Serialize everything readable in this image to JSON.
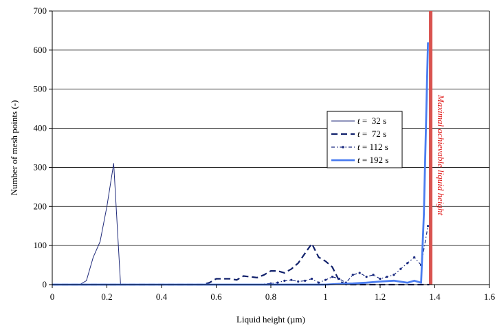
{
  "chart_data": {
    "type": "line",
    "title": "",
    "xlabel": "Liquid height (µm)",
    "ylabel": "Number of mesh points (-)",
    "xlim": [
      0,
      1.6
    ],
    "ylim": [
      0,
      700
    ],
    "xticks": [
      "0",
      "0.2",
      "0.4",
      "0.6",
      "0.8",
      "1",
      "1.2",
      "1.4",
      "1.6"
    ],
    "yticks": [
      "0",
      "100",
      "200",
      "300",
      "400",
      "500",
      "600",
      "700"
    ],
    "grid": "horizontal",
    "legend_position": "right-center",
    "annotation": {
      "text": "Maximal achievable liquid height",
      "x": 1.385,
      "color": "#d9534f"
    },
    "series": [
      {
        "name_prefix": "t",
        "name_suffix": " =  32 s",
        "color": "#1f2a7a",
        "style": "thin-solid",
        "x": [
          0,
          0.025,
          0.05,
          0.075,
          0.1,
          0.125,
          0.15,
          0.175,
          0.2,
          0.225,
          0.25,
          0.275,
          0.3,
          0.35,
          0.4,
          0.5,
          0.6,
          0.7,
          0.8,
          0.9,
          1.0,
          1.1,
          1.2,
          1.3,
          1.38
        ],
        "y": [
          0,
          0,
          0,
          0,
          0,
          10,
          70,
          110,
          200,
          310,
          0,
          0,
          0,
          0,
          0,
          0,
          0,
          0,
          0,
          0,
          0,
          0,
          0,
          0,
          0
        ]
      },
      {
        "name_prefix": "t",
        "name_suffix": " =  72 s",
        "color": "#10206b",
        "style": "dashed",
        "x": [
          0,
          0.2,
          0.4,
          0.55,
          0.575,
          0.6,
          0.625,
          0.65,
          0.675,
          0.7,
          0.725,
          0.75,
          0.775,
          0.8,
          0.825,
          0.85,
          0.875,
          0.9,
          0.925,
          0.95,
          0.975,
          1.0,
          1.025,
          1.05,
          1.075,
          1.1,
          1.2,
          1.38
        ],
        "y": [
          0,
          0,
          0,
          0,
          5,
          15,
          15,
          15,
          12,
          22,
          20,
          18,
          25,
          35,
          35,
          30,
          40,
          55,
          80,
          105,
          70,
          60,
          45,
          10,
          0,
          0,
          0,
          0
        ]
      },
      {
        "name_prefix": "t",
        "name_suffix": " = 112 s",
        "color": "#1a2a80",
        "style": "dash-dot-markers",
        "x": [
          0,
          0.2,
          0.4,
          0.6,
          0.75,
          0.8,
          0.825,
          0.85,
          0.875,
          0.9,
          0.925,
          0.95,
          0.975,
          1.0,
          1.025,
          1.05,
          1.075,
          1.1,
          1.125,
          1.15,
          1.175,
          1.2,
          1.225,
          1.25,
          1.275,
          1.3,
          1.325,
          1.35,
          1.375
        ],
        "y": [
          0,
          0,
          0,
          0,
          0,
          3,
          5,
          10,
          12,
          8,
          10,
          15,
          5,
          12,
          20,
          15,
          5,
          25,
          30,
          20,
          25,
          15,
          20,
          25,
          40,
          55,
          70,
          50,
          150
        ]
      },
      {
        "name_prefix": "t",
        "name_suffix": " = 192 s",
        "color": "#4a7cf0",
        "style": "thick-solid",
        "x": [
          0,
          0.2,
          0.4,
          0.6,
          0.8,
          1.0,
          1.05,
          1.1,
          1.15,
          1.2,
          1.25,
          1.3,
          1.325,
          1.35,
          1.36,
          1.375
        ],
        "y": [
          0,
          0,
          0,
          0,
          0,
          0,
          2,
          3,
          5,
          8,
          10,
          5,
          10,
          5,
          180,
          620
        ]
      }
    ]
  }
}
